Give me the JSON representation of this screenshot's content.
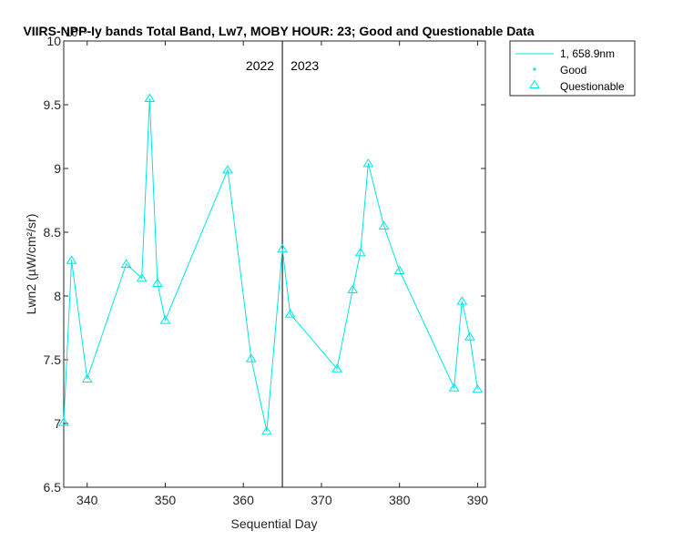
{
  "chart_data": {
    "type": "line",
    "title": "VIIRS-NPP-Iy bands Total Band, Lw7, MOBY HOUR: 23;  Good and Questionable Data",
    "xlabel": "Sequential Day",
    "ylabel": "Lwn2 (µW/cm²/sr)",
    "y_exponent_label": "10⁻³",
    "xlim": [
      337,
      391
    ],
    "ylim": [
      6.5,
      10
    ],
    "x_ticks": [
      340,
      350,
      360,
      370,
      380,
      390
    ],
    "y_ticks": [
      6.5,
      7,
      7.5,
      8,
      8.5,
      9,
      9.5,
      10
    ],
    "grid": false,
    "legend_position": "outside-top-right",
    "legend": [
      {
        "label": "1, 658.9nm",
        "marker": "line"
      },
      {
        "label": "Good",
        "marker": "dot"
      },
      {
        "label": "Questionable",
        "marker": "triangle"
      }
    ],
    "series_color": "#00e5e5",
    "divider": {
      "x": 365,
      "left_label": "2022",
      "right_label": "2023"
    },
    "series": [
      {
        "name": "1, 658.9nm",
        "points": [
          {
            "x": 337,
            "y": 7.01,
            "quality": "Questionable"
          },
          {
            "x": 338,
            "y": 8.28,
            "quality": "Questionable"
          },
          {
            "x": 340,
            "y": 7.35,
            "quality": "Questionable"
          },
          {
            "x": 345,
            "y": 8.25,
            "quality": "Questionable"
          },
          {
            "x": 347,
            "y": 8.14,
            "quality": "Questionable"
          },
          {
            "x": 348,
            "y": 9.55,
            "quality": "Questionable"
          },
          {
            "x": 349,
            "y": 8.1,
            "quality": "Questionable"
          },
          {
            "x": 350,
            "y": 7.81,
            "quality": "Questionable"
          },
          {
            "x": 358,
            "y": 8.99,
            "quality": "Questionable"
          },
          {
            "x": 361,
            "y": 7.51,
            "quality": "Questionable"
          },
          {
            "x": 363,
            "y": 6.94,
            "quality": "Questionable"
          },
          {
            "x": 365,
            "y": 8.37,
            "quality": "Questionable"
          },
          {
            "x": 366,
            "y": 7.86,
            "quality": "Questionable"
          },
          {
            "x": 372,
            "y": 7.43,
            "quality": "Questionable"
          },
          {
            "x": 374,
            "y": 8.05,
            "quality": "Questionable"
          },
          {
            "x": 375,
            "y": 8.34,
            "quality": "Questionable"
          },
          {
            "x": 376,
            "y": 9.04,
            "quality": "Questionable"
          },
          {
            "x": 378,
            "y": 8.55,
            "quality": "Questionable"
          },
          {
            "x": 380,
            "y": 8.2,
            "quality": "Questionable"
          },
          {
            "x": 387,
            "y": 7.28,
            "quality": "Questionable"
          },
          {
            "x": 388,
            "y": 7.96,
            "quality": "Questionable"
          },
          {
            "x": 389,
            "y": 7.68,
            "quality": "Questionable"
          },
          {
            "x": 390,
            "y": 7.27,
            "quality": "Questionable"
          }
        ]
      }
    ]
  }
}
